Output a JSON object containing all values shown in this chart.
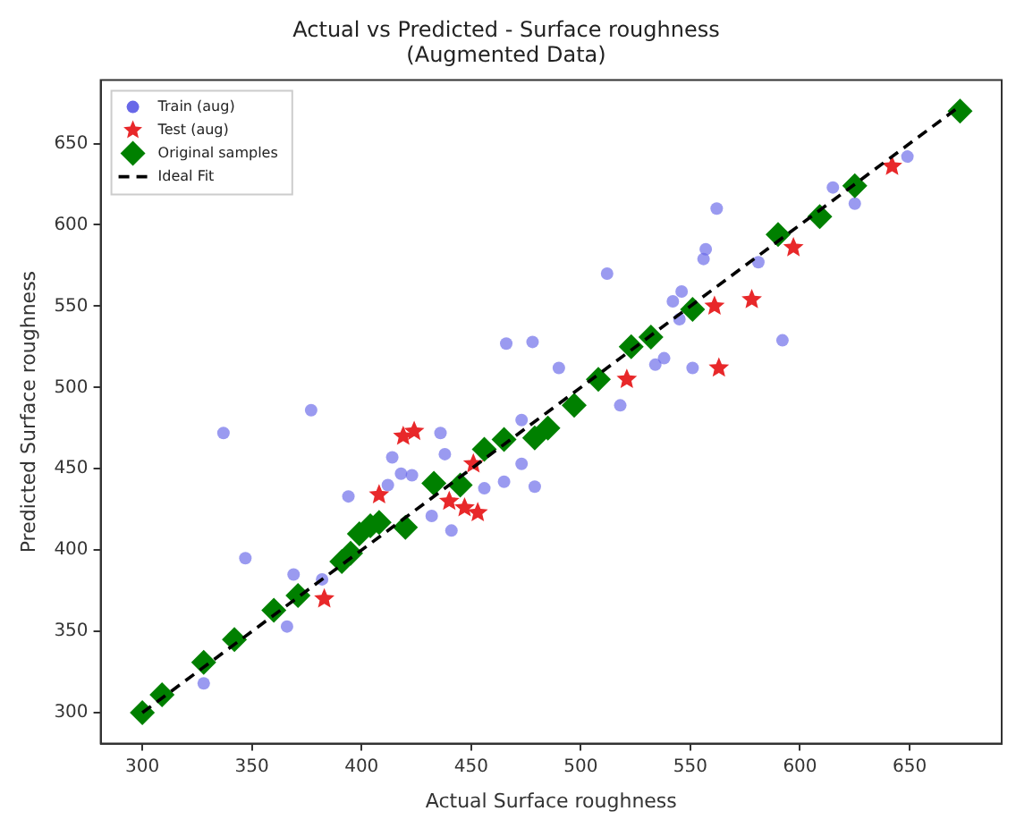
{
  "chart_data": {
    "type": "scatter",
    "title": "Actual vs Predicted - Surface roughness\n(Augmented Data)",
    "xlabel": "Actual Surface roughness",
    "ylabel": "Predicted Surface roughness",
    "xlim": [
      281,
      692
    ],
    "ylim": [
      281,
      689
    ],
    "xticks": [
      300,
      350,
      400,
      450,
      500,
      550,
      600,
      650
    ],
    "yticks": [
      300,
      350,
      400,
      450,
      500,
      550,
      600,
      650
    ],
    "grid": false,
    "legend": "top left",
    "series": [
      {
        "name": "Train (aug)",
        "type": "scatter",
        "marker": "circle",
        "color": "#6868e8",
        "x": [
          377,
          466,
          478,
          562,
          556,
          557,
          512,
          490,
          542,
          546,
          545,
          581,
          592,
          551,
          534,
          538,
          518,
          615,
          625,
          649,
          337,
          347,
          369,
          366,
          328,
          394,
          436,
          438,
          414,
          418,
          423,
          412,
          441,
          432,
          382,
          473,
          479,
          456,
          465,
          473
        ],
        "values": [
          486,
          527,
          528,
          610,
          579,
          585,
          570,
          512,
          553,
          559,
          542,
          577,
          529,
          512,
          514,
          518,
          489,
          623,
          613,
          642,
          472,
          395,
          385,
          353,
          318,
          433,
          472,
          459,
          457,
          447,
          446,
          440,
          412,
          421,
          382,
          453,
          439,
          438,
          442,
          480
        ]
      },
      {
        "name": "Test (aug)",
        "type": "scatter",
        "marker": "star",
        "color": "#e8282a",
        "x": [
          419,
          424,
          408,
          383,
          440,
          447,
          453,
          451,
          561,
          578,
          563,
          521,
          597,
          642
        ],
        "values": [
          470,
          473,
          434,
          370,
          430,
          426,
          423,
          453,
          550,
          554,
          512,
          505,
          586,
          636
        ]
      },
      {
        "name": "Original samples",
        "type": "scatter",
        "marker": "diamond",
        "color": "#008000",
        "x": [
          300,
          309,
          328,
          342,
          360,
          371,
          391,
          395,
          399,
          404,
          408,
          420,
          433,
          445,
          456,
          465,
          479,
          485,
          497,
          508,
          523,
          532,
          551,
          590,
          609,
          625,
          673
        ],
        "values": [
          300,
          311,
          331,
          345,
          363,
          372,
          393,
          398,
          410,
          415,
          417,
          414,
          441,
          440,
          462,
          468,
          469,
          475,
          489,
          505,
          525,
          531,
          548,
          594,
          605,
          624,
          670
        ]
      },
      {
        "name": "Ideal Fit",
        "type": "line",
        "marker": "none",
        "line_style": "dashed",
        "color": "#000000",
        "x": [
          300,
          673
        ],
        "values": [
          300,
          673
        ]
      }
    ]
  }
}
